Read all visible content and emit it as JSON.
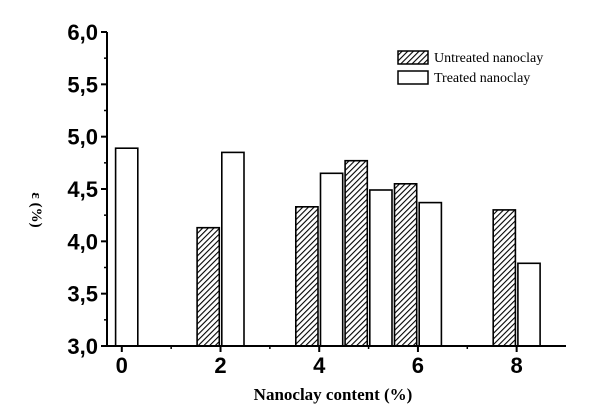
{
  "chart_data": {
    "type": "bar",
    "xlabel": "Nanoclay content (%)",
    "ylabel": "ε (%)",
    "xlim": [
      -0.3,
      9
    ],
    "ylim": [
      3.0,
      6.0
    ],
    "xticks": [
      0,
      2,
      4,
      6,
      8
    ],
    "xtick_labels": [
      "0",
      "2",
      "4",
      "6",
      "8"
    ],
    "yticks": [
      3.0,
      3.5,
      4.0,
      4.5,
      5.0,
      5.5,
      6.0
    ],
    "ytick_labels": [
      "3,0",
      "3,5",
      "4,0",
      "4,5",
      "5,0",
      "5,5",
      "6,0"
    ],
    "bar_width": 0.45,
    "legend_position": "top-right",
    "series": [
      {
        "name": "Untreated nanoclay",
        "pattern": "hatched",
        "points": [
          {
            "x": 1.75,
            "y": 4.13
          },
          {
            "x": 3.75,
            "y": 4.33
          },
          {
            "x": 4.75,
            "y": 4.77
          },
          {
            "x": 5.75,
            "y": 4.55
          },
          {
            "x": 7.75,
            "y": 4.3
          }
        ]
      },
      {
        "name": "Treated nanoclay",
        "pattern": "white",
        "points": [
          {
            "x": 0.1,
            "y": 4.89
          },
          {
            "x": 2.25,
            "y": 4.85
          },
          {
            "x": 4.25,
            "y": 4.65
          },
          {
            "x": 5.25,
            "y": 4.49
          },
          {
            "x": 6.25,
            "y": 4.37
          },
          {
            "x": 8.25,
            "y": 3.79
          }
        ]
      }
    ]
  }
}
